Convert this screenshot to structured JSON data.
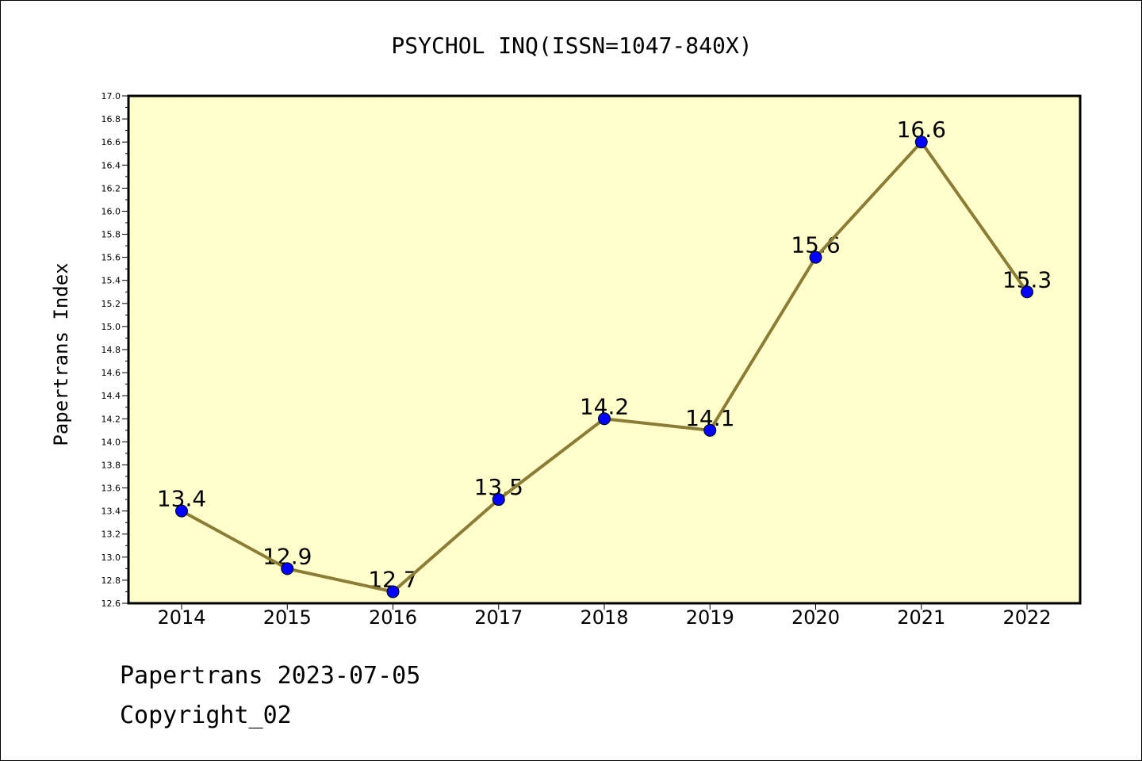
{
  "chart_data": {
    "type": "line",
    "title": "PSYCHOL INQ(ISSN=1047-840X)",
    "ylabel": "Papertrans Index",
    "xlabel": "",
    "categories": [
      "2014",
      "2015",
      "2016",
      "2017",
      "2018",
      "2019",
      "2020",
      "2021",
      "2022"
    ],
    "series": [
      {
        "values": [
          13.4,
          12.9,
          12.7,
          13.5,
          14.2,
          14.1,
          15.6,
          16.6,
          15.3
        ]
      }
    ],
    "data_labels": [
      "13.4",
      "12.9",
      "12.7",
      "13.5",
      "14.2",
      "14.1",
      "15.6",
      "16.6",
      "15.3"
    ],
    "ylim": [
      12.6,
      17.0
    ],
    "y_ticks": [
      "12.6",
      "12.8",
      "13.0",
      "13.2",
      "13.4",
      "13.6",
      "13.8",
      "14.0",
      "14.2",
      "14.4",
      "14.6",
      "14.8",
      "15.0",
      "15.2",
      "15.4",
      "15.6",
      "15.8",
      "16.0",
      "16.2",
      "16.4",
      "16.6",
      "16.8",
      "17.0"
    ],
    "grid": false,
    "legend": "none",
    "colors": {
      "plot_background": "#ffffcc",
      "line": "#8b7d36",
      "marker": "#0000ff",
      "axis": "#000000"
    }
  },
  "footer": {
    "date_line": "Papertrans 2023-07-05",
    "copyright": "Copyright_02"
  }
}
